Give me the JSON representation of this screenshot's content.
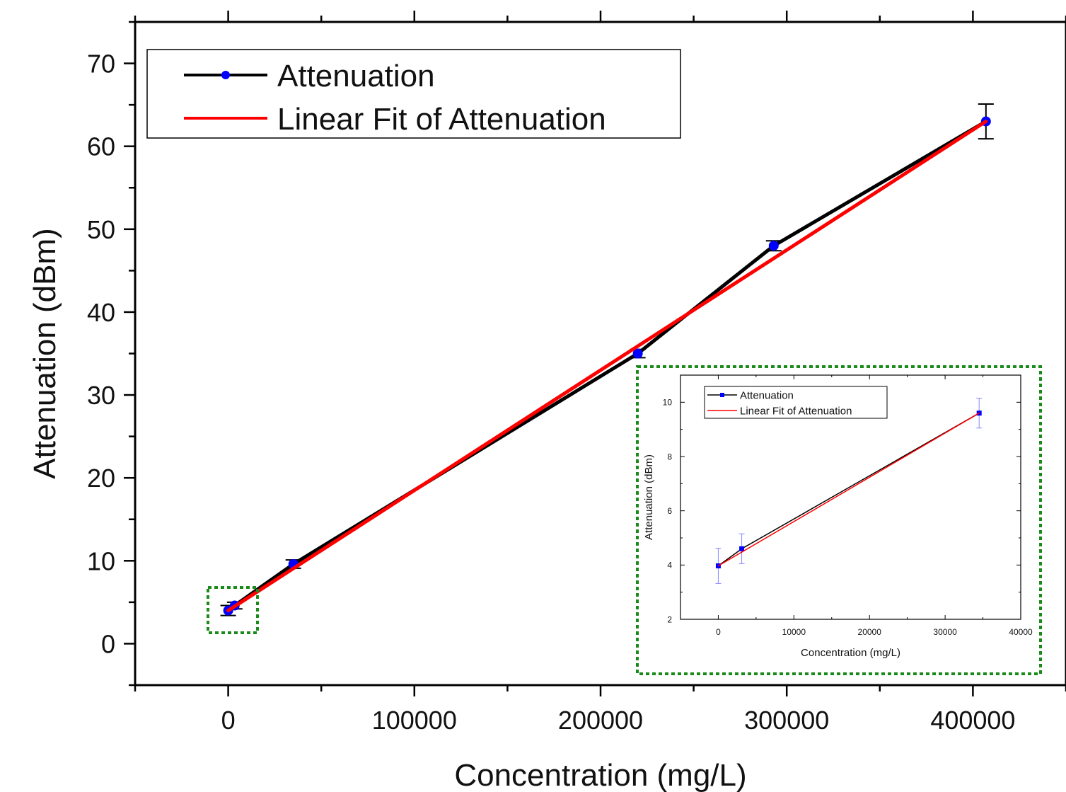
{
  "chart_data": [
    {
      "type": "line",
      "xlabel": "Concentration (mg/L)",
      "ylabel": "Attenuation (dBm)",
      "xlim": [
        -50000,
        450000
      ],
      "ylim": [
        -5,
        75
      ],
      "x_ticks": [
        0,
        100000,
        200000,
        300000,
        400000
      ],
      "x_tick_labels": [
        "0",
        "100000",
        "200000",
        "300000",
        "400000"
      ],
      "y_ticks": [
        0,
        10,
        20,
        30,
        40,
        50,
        60,
        70
      ],
      "y_tick_labels": [
        "0",
        "10",
        "20",
        "30",
        "40",
        "50",
        "60",
        "70"
      ],
      "grid": false,
      "legend_position": "top-left",
      "series": [
        {
          "name": "Attenuation",
          "color": "#000000",
          "marker_color": "#0000ff",
          "marker": "circle",
          "x": [
            0,
            3500,
            35000,
            220000,
            293000,
            407000
          ],
          "y": [
            4.0,
            4.6,
            9.6,
            35.0,
            48.0,
            63.0
          ],
          "error": [
            0.6,
            0.4,
            0.5,
            0.5,
            0.6,
            2.1
          ]
        },
        {
          "name": "Linear Fit of Attenuation",
          "color": "#ff0000",
          "x": [
            0,
            407000
          ],
          "y": [
            4.0,
            63.0
          ]
        }
      ]
    },
    {
      "type": "line",
      "xlabel": "Concentration (mg/L)",
      "ylabel": "Attenuation (dBm)",
      "xlim": [
        -5000,
        40000
      ],
      "ylim": [
        2,
        11
      ],
      "x_ticks": [
        0,
        10000,
        20000,
        30000,
        40000
      ],
      "x_tick_labels": [
        "0",
        "10000",
        "20000",
        "30000",
        "40000"
      ],
      "y_ticks": [
        2,
        4,
        6,
        8,
        10
      ],
      "y_tick_labels": [
        "2",
        "4",
        "6",
        "8",
        "10"
      ],
      "grid": false,
      "legend_position": "top-left",
      "series": [
        {
          "name": "Attenuation",
          "color": "#000000",
          "marker_color": "#0000ff",
          "marker": "square",
          "x": [
            0,
            3100,
            34500
          ],
          "y": [
            3.97,
            4.6,
            9.6
          ],
          "error": [
            0.65,
            0.55,
            0.55
          ]
        },
        {
          "name": "Linear Fit of Attenuation",
          "color": "#ff0000",
          "x": [
            0,
            34500
          ],
          "y": [
            3.97,
            9.6
          ]
        }
      ]
    }
  ],
  "highlight_color": "#1a8a1a"
}
